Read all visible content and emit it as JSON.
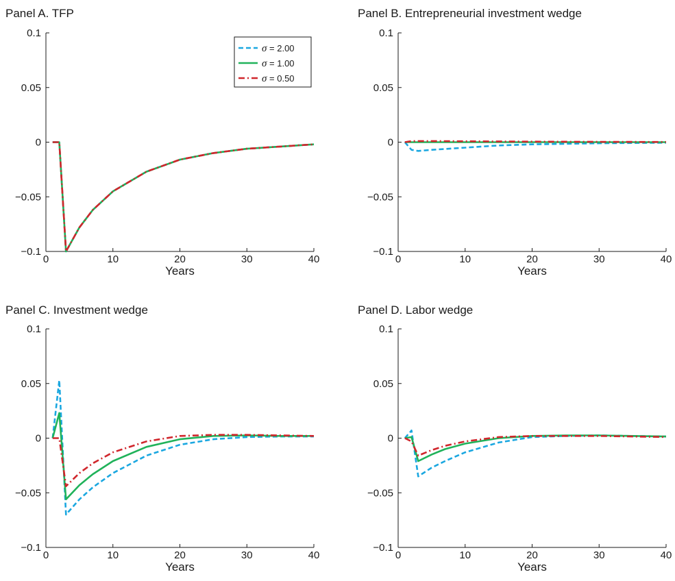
{
  "colors": {
    "sigma_2": "#1aa7e0",
    "sigma_1": "#20b25a",
    "sigma_05": "#d0262c",
    "axis": "#1a1a1a"
  },
  "legend": {
    "placement": "top-right of Panel A",
    "entries": [
      {
        "symbol": "σ",
        "text": " = 2.00",
        "style": "dashed",
        "color": "#1aa7e0"
      },
      {
        "symbol": "σ",
        "text": " = 1.00",
        "style": "solid",
        "color": "#20b25a"
      },
      {
        "symbol": "σ",
        "text": " = 0.50",
        "style": "dash-dot",
        "color": "#d0262c"
      }
    ]
  },
  "chart_data": [
    {
      "type": "line",
      "title": "Panel A. TFP",
      "xlabel": "Years",
      "ylabel": "",
      "xlim": [
        0,
        40
      ],
      "ylim": [
        -0.1,
        0.1
      ],
      "xticks": [
        "0",
        "10",
        "20",
        "30",
        "40"
      ],
      "yticks": [
        "0.1",
        "0.05",
        "0",
        "−0.05",
        "−0.1"
      ],
      "grid": false,
      "series": [
        {
          "name": "σ = 2.00",
          "style": "dashed",
          "color": "#1aa7e0",
          "x": [
            1,
            2,
            3,
            5,
            7,
            10,
            15,
            20,
            25,
            30,
            35,
            40
          ],
          "y": [
            0,
            0,
            -0.1,
            -0.078,
            -0.062,
            -0.045,
            -0.027,
            -0.016,
            -0.01,
            -0.006,
            -0.004,
            -0.002
          ]
        },
        {
          "name": "σ = 1.00",
          "style": "solid",
          "color": "#20b25a",
          "x": [
            1,
            2,
            3,
            5,
            7,
            10,
            15,
            20,
            25,
            30,
            35,
            40
          ],
          "y": [
            0,
            0,
            -0.1,
            -0.078,
            -0.062,
            -0.045,
            -0.027,
            -0.016,
            -0.01,
            -0.006,
            -0.004,
            -0.002
          ]
        },
        {
          "name": "σ = 0.50",
          "style": "dash-dot",
          "color": "#d0262c",
          "x": [
            1,
            2,
            3,
            5,
            7,
            10,
            15,
            20,
            25,
            30,
            35,
            40
          ],
          "y": [
            0,
            0,
            -0.1,
            -0.078,
            -0.062,
            -0.045,
            -0.027,
            -0.016,
            -0.01,
            -0.006,
            -0.004,
            -0.002
          ]
        }
      ]
    },
    {
      "type": "line",
      "title": "Panel B. Entrepreneurial investment wedge",
      "xlabel": "Years",
      "ylabel": "",
      "xlim": [
        0,
        40
      ],
      "ylim": [
        -0.1,
        0.1
      ],
      "xticks": [
        "0",
        "10",
        "20",
        "30",
        "40"
      ],
      "yticks": [
        "0.1",
        "0.05",
        "0",
        "−0.05",
        "−0.1"
      ],
      "grid": false,
      "series": [
        {
          "name": "σ = 2.00",
          "style": "dashed",
          "color": "#1aa7e0",
          "x": [
            1,
            2,
            3,
            5,
            10,
            15,
            20,
            30,
            40
          ],
          "y": [
            0,
            -0.007,
            -0.008,
            -0.007,
            -0.005,
            -0.003,
            -0.002,
            -0.001,
            -0.0005
          ]
        },
        {
          "name": "σ = 1.00",
          "style": "solid",
          "color": "#20b25a",
          "x": [
            1,
            2,
            3,
            5,
            10,
            20,
            30,
            40
          ],
          "y": [
            0,
            0,
            0,
            0,
            0,
            0,
            0,
            0
          ]
        },
        {
          "name": "σ = 0.50",
          "style": "dash-dot",
          "color": "#d0262c",
          "x": [
            1,
            2,
            3,
            5,
            10,
            20,
            30,
            40
          ],
          "y": [
            0,
            0.001,
            0.001,
            0.001,
            0.0008,
            0.0005,
            0.0003,
            0.0002
          ]
        }
      ]
    },
    {
      "type": "line",
      "title": "Panel C. Investment wedge",
      "xlabel": "Years",
      "ylabel": "",
      "xlim": [
        0,
        40
      ],
      "ylim": [
        -0.1,
        0.1
      ],
      "xticks": [
        "0",
        "10",
        "20",
        "30",
        "40"
      ],
      "yticks": [
        "0.1",
        "0.05",
        "0",
        "−0.05",
        "−0.1"
      ],
      "grid": false,
      "series": [
        {
          "name": "σ = 2.00",
          "style": "dashed",
          "color": "#1aa7e0",
          "x": [
            1,
            2,
            3,
            5,
            7,
            10,
            15,
            20,
            25,
            30,
            35,
            40
          ],
          "y": [
            0,
            0.053,
            -0.07,
            -0.056,
            -0.045,
            -0.032,
            -0.016,
            -0.006,
            -0.001,
            0.001,
            0.0015,
            0.0015
          ]
        },
        {
          "name": "σ = 1.00",
          "style": "solid",
          "color": "#20b25a",
          "x": [
            1,
            2,
            3,
            5,
            7,
            10,
            15,
            20,
            25,
            30,
            35,
            40
          ],
          "y": [
            0,
            0.023,
            -0.056,
            -0.043,
            -0.033,
            -0.021,
            -0.008,
            -0.001,
            0.002,
            0.0025,
            0.002,
            0.002
          ]
        },
        {
          "name": "σ = 0.50",
          "style": "dash-dot",
          "color": "#d0262c",
          "x": [
            1,
            2,
            3,
            5,
            7,
            10,
            15,
            20,
            25,
            30,
            35,
            40
          ],
          "y": [
            0,
            0,
            -0.044,
            -0.032,
            -0.023,
            -0.013,
            -0.003,
            0.002,
            0.003,
            0.003,
            0.0025,
            0.002
          ]
        }
      ]
    },
    {
      "type": "line",
      "title": "Panel D. Labor wedge",
      "xlabel": "Years",
      "ylabel": "",
      "xlim": [
        0,
        40
      ],
      "ylim": [
        -0.1,
        0.1
      ],
      "xticks": [
        "0",
        "10",
        "20",
        "30",
        "40"
      ],
      "yticks": [
        "0.1",
        "0.05",
        "0",
        "−0.05",
        "−0.1"
      ],
      "grid": false,
      "series": [
        {
          "name": "σ = 2.00",
          "style": "dashed",
          "color": "#1aa7e0",
          "x": [
            1,
            2,
            3,
            5,
            7,
            10,
            15,
            20,
            25,
            30,
            35,
            40
          ],
          "y": [
            0,
            0.007,
            -0.035,
            -0.027,
            -0.021,
            -0.013,
            -0.004,
            0.001,
            0.002,
            0.0025,
            0.002,
            0.0015
          ]
        },
        {
          "name": "σ = 1.00",
          "style": "solid",
          "color": "#20b25a",
          "x": [
            1,
            2,
            3,
            5,
            7,
            10,
            15,
            20,
            25,
            30,
            35,
            40
          ],
          "y": [
            0,
            0.001,
            -0.021,
            -0.015,
            -0.01,
            -0.005,
            0,
            0.002,
            0.0025,
            0.0025,
            0.002,
            0.0015
          ]
        },
        {
          "name": "σ = 0.50",
          "style": "dash-dot",
          "color": "#d0262c",
          "x": [
            1,
            2,
            3,
            5,
            7,
            10,
            15,
            20,
            25,
            30,
            35,
            40
          ],
          "y": [
            0,
            -0.003,
            -0.016,
            -0.011,
            -0.007,
            -0.003,
            0.001,
            0.002,
            0.002,
            0.002,
            0.0015,
            0.001
          ]
        }
      ]
    }
  ]
}
